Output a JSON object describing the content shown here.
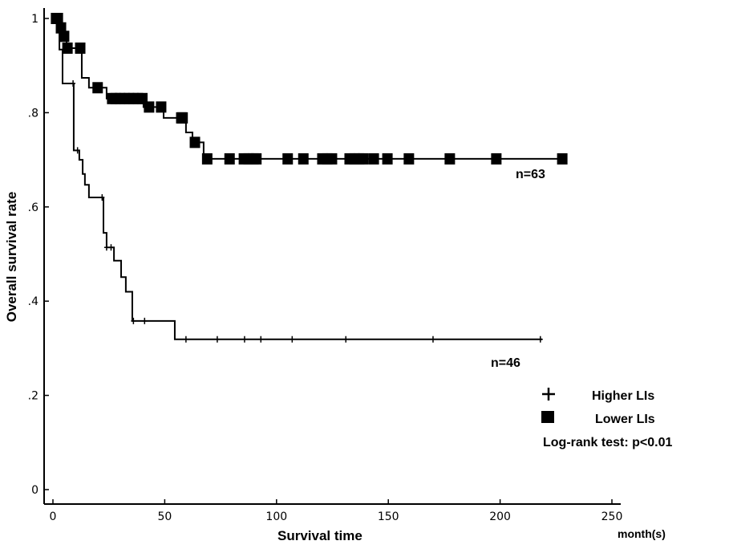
{
  "chart_data": {
    "type": "line",
    "subtype": "kaplan-meier",
    "title": "",
    "xlabel": "Survival time",
    "xunit": "month(s)",
    "ylabel": "Overall survival rate",
    "xlim": [
      0,
      250
    ],
    "ylim": [
      0,
      1
    ],
    "xticks": [
      0,
      50,
      100,
      150,
      200,
      250
    ],
    "xtick_labels": [
      "0",
      "50",
      "100",
      "150",
      "200",
      "250"
    ],
    "yticks": [
      0,
      0.2,
      0.4,
      0.6,
      0.8,
      1
    ],
    "ytick_labels": [
      "0",
      ".2",
      ".4",
      ".6",
      ".8",
      "1"
    ],
    "grid": false,
    "legend_position": "right",
    "annotation": "Log-rank test: p<0.01",
    "series": [
      {
        "name": "Higher LIs",
        "marker": "plus",
        "n_label": "n=46",
        "steps": [
          [
            0,
            1.0
          ],
          [
            2.9,
            0.934
          ],
          [
            4.3,
            0.862
          ],
          [
            9.3,
            0.72
          ],
          [
            11.8,
            0.7
          ],
          [
            13.3,
            0.67
          ],
          [
            14.3,
            0.647
          ],
          [
            16.1,
            0.62
          ],
          [
            22.6,
            0.545
          ],
          [
            24,
            0.514
          ],
          [
            27.3,
            0.486
          ],
          [
            30.5,
            0.451
          ],
          [
            32.6,
            0.42
          ],
          [
            35.5,
            0.358
          ],
          [
            54.5,
            0.319
          ]
        ],
        "end": 218.8,
        "censored": [
          9,
          11,
          22,
          24,
          26,
          36,
          41,
          59.5,
          73.5,
          85.7,
          93,
          107,
          131,
          170,
          218
        ]
      },
      {
        "name": "Lower LIs",
        "marker": "square",
        "n_label": "n=63",
        "steps": [
          [
            0,
            1.0
          ],
          [
            3.6,
            0.98
          ],
          [
            5,
            0.962
          ],
          [
            6.1,
            0.937
          ],
          [
            12.9,
            0.874
          ],
          [
            16.1,
            0.853
          ],
          [
            24,
            0.83
          ],
          [
            40.5,
            0.812
          ],
          [
            49.5,
            0.789
          ],
          [
            59.5,
            0.758
          ],
          [
            62.4,
            0.737
          ],
          [
            67.4,
            0.702
          ]
        ],
        "end": 229.6,
        "censored": [
          1.4,
          2.2,
          3.6,
          5,
          6.5,
          12.2,
          20,
          26.5,
          28,
          30,
          32,
          34,
          36,
          38,
          40,
          43,
          48.4,
          57.4,
          58,
          63.5,
          69,
          79,
          85.4,
          87.5,
          89.7,
          91,
          105,
          112,
          120.5,
          122.7,
          124.8,
          132.7,
          134.9,
          137,
          138.8,
          143.5,
          149.6,
          159.2,
          177.5,
          198.3,
          227.8
        ]
      }
    ]
  }
}
